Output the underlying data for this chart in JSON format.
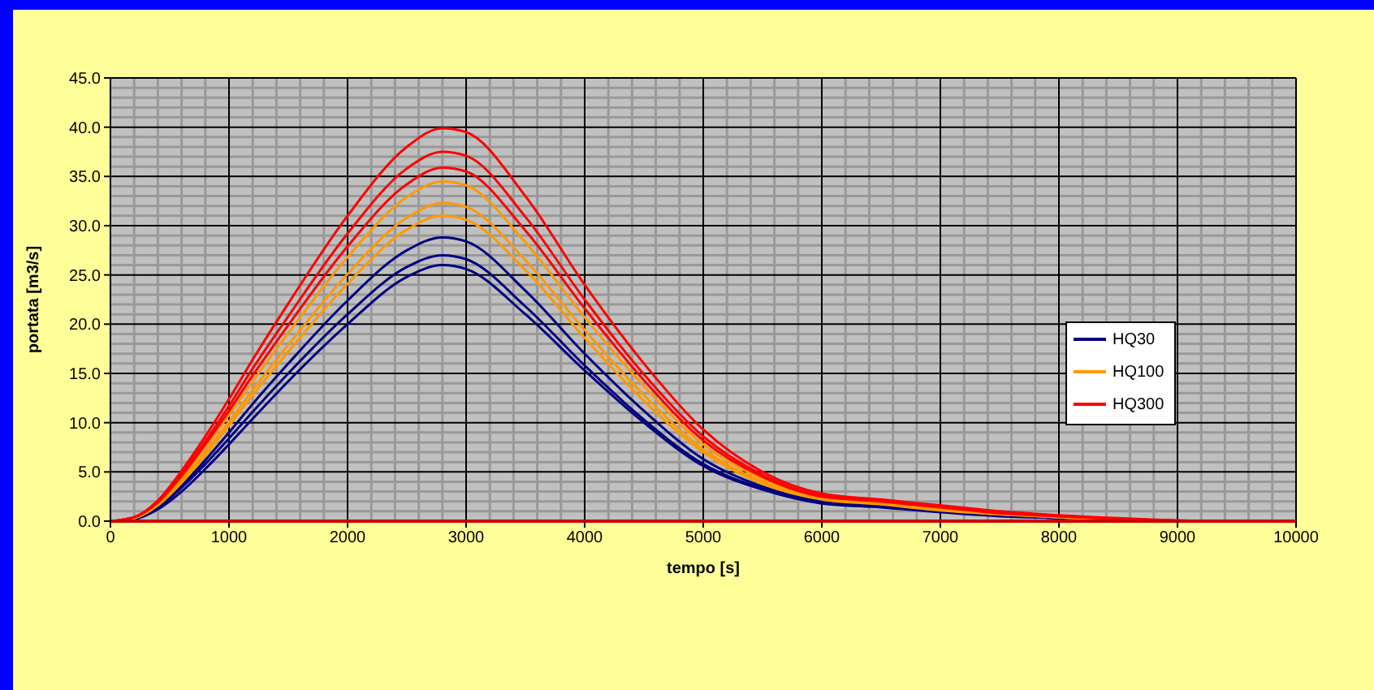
{
  "chart_data": {
    "type": "line",
    "xlabel": "tempo [s]",
    "ylabel": "portata [m3/s]",
    "series": [
      {
        "name": "HQ30",
        "color": "#000080",
        "x": [
          0,
          200,
          400,
          600,
          800,
          1000,
          1200,
          1500,
          2000,
          2500,
          2800,
          3000,
          3500,
          4000,
          4500,
          5000,
          5500,
          6000,
          6500,
          7000,
          7500,
          8000,
          8600
        ],
        "values": [
          0,
          0.3,
          1.4,
          3.4,
          5.8,
          8.4,
          11.1,
          15.0,
          21.0,
          25.8,
          27.0,
          26.6,
          21.8,
          15.8,
          10.3,
          5.8,
          3.3,
          1.9,
          1.5,
          1.0,
          0.6,
          0.3,
          0
        ]
      },
      {
        "color": "#000080",
        "x": [
          0,
          200,
          400,
          600,
          800,
          1000,
          1200,
          1500,
          2000,
          2500,
          2800,
          3000,
          3500,
          4000,
          4500,
          5000,
          5500,
          6000,
          6500,
          7000,
          7500,
          8000,
          8400
        ],
        "values": [
          0,
          0.2,
          1.2,
          3.0,
          5.3,
          7.8,
          10.4,
          14.2,
          20.0,
          24.8,
          26.0,
          25.6,
          21.0,
          15.3,
          10.0,
          5.6,
          3.2,
          1.8,
          1.4,
          0.9,
          0.5,
          0.3,
          0
        ]
      },
      {
        "color": "#000080",
        "x": [
          0,
          200,
          400,
          600,
          800,
          1000,
          1200,
          1500,
          2000,
          2500,
          2800,
          3000,
          3500,
          4000,
          4500,
          5000,
          5500,
          6000,
          6500,
          7000,
          7500,
          8000,
          8700
        ],
        "values": [
          0,
          0.3,
          1.5,
          3.6,
          6.2,
          9.0,
          11.9,
          16.0,
          22.4,
          27.5,
          28.8,
          28.4,
          23.4,
          17.0,
          11.2,
          6.3,
          3.5,
          2.0,
          1.6,
          1.0,
          0.6,
          0.3,
          0
        ]
      },
      {
        "name": "HQ100",
        "color": "#ff9900",
        "x": [
          0,
          200,
          400,
          600,
          800,
          1000,
          1200,
          1500,
          2000,
          2500,
          2800,
          3000,
          3500,
          4000,
          4500,
          5000,
          5500,
          6000,
          6500,
          7000,
          7500,
          8000,
          8800
        ],
        "values": [
          0,
          0.3,
          1.7,
          4.1,
          7.0,
          10.1,
          13.3,
          17.9,
          25.1,
          30.8,
          32.3,
          31.9,
          26.5,
          19.4,
          12.8,
          7.3,
          4.0,
          2.3,
          1.8,
          1.2,
          0.7,
          0.4,
          0
        ]
      },
      {
        "color": "#ff9900",
        "x": [
          0,
          200,
          400,
          600,
          800,
          1000,
          1200,
          1500,
          2000,
          2500,
          2800,
          3000,
          3500,
          4000,
          4500,
          5000,
          5500,
          6000,
          6500,
          7000,
          7500,
          8000,
          8900
        ],
        "values": [
          0,
          0.3,
          1.6,
          3.9,
          6.7,
          9.7,
          12.8,
          17.2,
          24.1,
          29.6,
          31.0,
          30.6,
          25.5,
          18.6,
          12.2,
          7.0,
          3.8,
          2.2,
          1.7,
          1.1,
          0.7,
          0.4,
          0
        ]
      },
      {
        "color": "#ff9900",
        "x": [
          0,
          200,
          400,
          600,
          800,
          1000,
          1200,
          1500,
          2000,
          2500,
          2800,
          3000,
          3500,
          4000,
          4500,
          5000,
          5500,
          6000,
          6500,
          7000,
          7500,
          8000,
          8950
        ],
        "values": [
          0,
          0.4,
          1.8,
          4.4,
          7.5,
          10.8,
          14.2,
          19.1,
          26.8,
          32.9,
          34.5,
          34.1,
          28.3,
          20.7,
          13.7,
          7.8,
          4.3,
          2.4,
          1.9,
          1.3,
          0.8,
          0.4,
          0
        ]
      },
      {
        "name": "HQ300",
        "color": "#ff0000",
        "x": [
          0,
          200,
          400,
          600,
          800,
          1000,
          1200,
          1500,
          2000,
          2500,
          2800,
          3000,
          3500,
          4000,
          4500,
          5000,
          5500,
          6000,
          6500,
          7000,
          7500,
          8000,
          9100
        ],
        "values": [
          0,
          0.4,
          2.0,
          4.8,
          8.1,
          11.7,
          15.5,
          20.8,
          29.2,
          35.8,
          37.5,
          37.1,
          30.9,
          22.5,
          14.9,
          8.6,
          4.7,
          2.6,
          2.1,
          1.5,
          0.9,
          0.5,
          0
        ]
      },
      {
        "color": "#ff0000",
        "x": [
          0,
          200,
          400,
          600,
          800,
          1000,
          1200,
          1500,
          2000,
          2500,
          2800,
          3000,
          3500,
          4000,
          4500,
          5000,
          5500,
          6000,
          6500,
          7000,
          7500,
          8000,
          9000
        ],
        "values": [
          0,
          0.4,
          1.9,
          4.6,
          7.8,
          11.2,
          14.8,
          19.9,
          27.9,
          34.2,
          35.9,
          35.5,
          29.5,
          21.6,
          14.3,
          8.2,
          4.5,
          2.5,
          2.0,
          1.4,
          0.8,
          0.5,
          0
        ]
      },
      {
        "color": "#ff0000",
        "x": [
          0,
          200,
          400,
          600,
          800,
          1000,
          1200,
          1500,
          2000,
          2500,
          2800,
          3000,
          3500,
          4000,
          4500,
          5000,
          5500,
          6000,
          6500,
          7000,
          7500,
          8000,
          9200
        ],
        "values": [
          0,
          0.4,
          2.1,
          5.1,
          8.6,
          12.4,
          16.4,
          22.1,
          31.0,
          38.0,
          39.9,
          39.5,
          33.0,
          24.0,
          16.0,
          9.3,
          5.0,
          2.8,
          2.2,
          1.6,
          1.0,
          0.6,
          0
        ]
      }
    ],
    "xlim": [
      0,
      10000
    ],
    "xticks": [
      0,
      1000,
      2000,
      3000,
      4000,
      5000,
      6000,
      7000,
      8000,
      9000,
      10000
    ],
    "ylim": [
      0,
      45
    ],
    "yticks": [
      {
        "value": 0,
        "label": "0.0"
      },
      {
        "value": 5,
        "label": "5.0"
      },
      {
        "value": 10,
        "label": "10.0"
      },
      {
        "value": 15,
        "label": "15.0"
      },
      {
        "value": 20,
        "label": "20.0"
      },
      {
        "value": 25,
        "label": "25.0"
      },
      {
        "value": 30,
        "label": "30.0"
      },
      {
        "value": 35,
        "label": "35.0"
      },
      {
        "value": 40,
        "label": "40.0"
      },
      {
        "value": 45,
        "label": "45.0"
      }
    ],
    "grid": true,
    "legend": "right",
    "marker": "none",
    "line_style": "solid"
  }
}
